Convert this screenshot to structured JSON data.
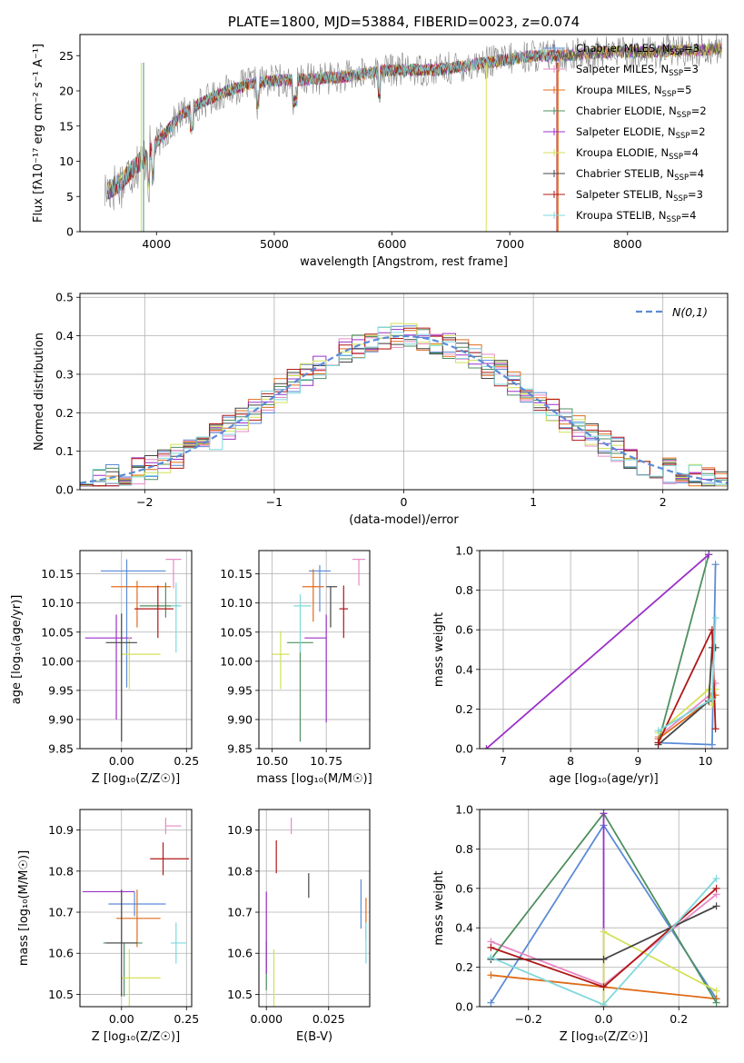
{
  "colors": {
    "Chabrier MILES": "#5b8bd6",
    "Salpeter MILES": "#e78ac3",
    "Kroupa MILES": "#e06c1a",
    "Chabrier ELODIE": "#4f8f5f",
    "Salpeter ELODIE": "#9b30c8",
    "Kroupa ELODIE": "#d4e157",
    "Chabrier STELIB": "#444444",
    "Salpeter STELIB": "#b01818",
    "Kroupa STELIB": "#7fd8dc",
    "normal": "#5b8bd6"
  },
  "chart_data": [
    {
      "id": "spectrum",
      "type": "line",
      "title": "PLATE=1800, MJD=53884, FIBERID=0023, z=0.074",
      "xlabel": "wavelength [Angstrom, rest frame]",
      "ylabel": "Flux [fλ10⁻¹⁷ erg cm⁻² s⁻¹ A⁻¹]",
      "xlim": [
        3350,
        8850
      ],
      "ylim": [
        0,
        28
      ],
      "xticks": [
        "4000",
        "5000",
        "6000",
        "7000",
        "8000"
      ],
      "yticks": [
        "0",
        "5",
        "10",
        "15",
        "20",
        "25"
      ],
      "legend_position": "top-right",
      "legend": [
        "Chabrier MILES, N_SSP=3",
        "Salpeter MILES, N_SSP=3",
        "Kroupa MILES, N_SSP=5",
        "Chabrier ELODIE, N_SSP=2",
        "Salpeter ELODIE, N_SSP=2",
        "Kroupa ELODIE, N_SSP=4",
        "Chabrier STELIB, N_SSP=4",
        "Salpeter STELIB, N_SSP=3",
        "Kroupa STELIB, N_SSP=4"
      ],
      "continuum": {
        "x": [
          3550,
          3700,
          3800,
          3900,
          4000,
          4100,
          4200,
          4400,
          4600,
          4800,
          5000,
          5200,
          5400,
          5600,
          5800,
          6000,
          6200,
          6400,
          6600,
          6800,
          7000,
          7200,
          7400,
          7600,
          7800,
          8000,
          8200,
          8400,
          8600,
          8800
        ],
        "y": [
          5.5,
          7,
          9,
          10.5,
          12.5,
          14.5,
          16.5,
          18.5,
          20,
          21,
          21.5,
          21.5,
          21.8,
          22,
          22.5,
          23,
          23,
          23,
          23.5,
          24,
          24.5,
          25,
          25,
          25.2,
          25.5,
          25.5,
          25.5,
          25.7,
          25.8,
          26
        ]
      }
    },
    {
      "id": "residuals",
      "type": "bar",
      "xlabel": "(data-model)/error",
      "ylabel": "Normed distribution",
      "xlim": [
        -2.5,
        2.5
      ],
      "ylim": [
        0,
        0.51
      ],
      "xticks": [
        "−2",
        "−1",
        "0",
        "1",
        "2"
      ],
      "yticks": [
        "0.0",
        "0.1",
        "0.2",
        "0.3",
        "0.4",
        "0.5"
      ],
      "bin_width": 0.1,
      "legend": "N(0,1)",
      "legend_position": "top-right"
    },
    {
      "id": "age-vs-Z",
      "type": "scatter",
      "xlabel": "Z [log₁₀(Z/Z☉)]",
      "ylabel": "age  [log₁₀(age/yr)]",
      "xlim": [
        -0.16,
        0.27
      ],
      "ylim": [
        9.85,
        10.19
      ],
      "xticks": [
        "0.00",
        "0.25"
      ],
      "yticks": [
        "9.85",
        "9.90",
        "9.95",
        "10.00",
        "10.05",
        "10.10",
        "10.15"
      ],
      "points": [
        {
          "s": "Chabrier MILES",
          "x": 0.02,
          "y": 10.155,
          "xe": [
            0.1,
            0.15
          ],
          "ye": [
            0.2,
            0.02
          ]
        },
        {
          "s": "Salpeter MILES",
          "x": 0.2,
          "y": 10.175,
          "xe": [
            0.03,
            0.03
          ],
          "ye": [
            0.05,
            0.0
          ]
        },
        {
          "s": "Kroupa MILES",
          "x": 0.06,
          "y": 10.128,
          "xe": [
            0.1,
            0.13
          ],
          "ye": [
            0.07,
            0.01
          ]
        },
        {
          "s": "Chabrier ELODIE",
          "x": 0.17,
          "y": 10.095,
          "xe": [
            0.1,
            0.05
          ],
          "ye": [
            0.02,
            0.04
          ]
        },
        {
          "s": "Salpeter ELODIE",
          "x": -0.02,
          "y": 10.04,
          "xe": [
            0.12,
            0.06
          ],
          "ye": [
            0.14,
            0.04
          ]
        },
        {
          "s": "Kroupa ELODIE",
          "x": 0.03,
          "y": 10.012,
          "xe": [
            0.03,
            0.12
          ],
          "ye": [
            0.06,
            0.03
          ]
        },
        {
          "s": "Chabrier STELIB",
          "x": 0.0,
          "y": 10.032,
          "xe": [
            0.06,
            0.06
          ],
          "ye": [
            0.17,
            0.05
          ]
        },
        {
          "s": "Salpeter STELIB",
          "x": 0.14,
          "y": 10.09,
          "xe": [
            0.09,
            0.06
          ],
          "ye": [
            0.05,
            0.04
          ]
        },
        {
          "s": "Kroupa STELIB",
          "x": 0.21,
          "y": 10.095,
          "xe": [
            0.02,
            0.02
          ],
          "ye": [
            0.08,
            0.04
          ]
        }
      ]
    },
    {
      "id": "age-vs-mass",
      "type": "scatter",
      "xlabel": "mass [log₁₀(M/M☉)]",
      "ylabel": "",
      "xlim": [
        10.44,
        10.95
      ],
      "ylim": [
        9.85,
        10.19
      ],
      "xticks": [
        "10.50",
        "10.75"
      ],
      "yticks": [
        "9.85",
        "9.90",
        "9.95",
        "10.00",
        "10.05",
        "10.10",
        "10.15"
      ],
      "points": [
        {
          "s": "Chabrier MILES",
          "x": 10.72,
          "y": 10.155,
          "xe": [
            0.05,
            0.05
          ],
          "ye": [
            0.07,
            0.01
          ]
        },
        {
          "s": "Salpeter MILES",
          "x": 10.9,
          "y": 10.175,
          "xe": [
            0.03,
            0.03
          ],
          "ye": [
            0.045,
            0.0
          ]
        },
        {
          "s": "Kroupa MILES",
          "x": 10.69,
          "y": 10.128,
          "xe": [
            0.05,
            0.05
          ],
          "ye": [
            0.06,
            0.03
          ]
        },
        {
          "s": "Chabrier ELODIE",
          "x": 10.63,
          "y": 10.032,
          "xe": [
            0.06,
            0.06
          ],
          "ye": [
            0.17,
            0.0
          ]
        },
        {
          "s": "Salpeter ELODIE",
          "x": 10.75,
          "y": 10.04,
          "xe": [
            0.1,
            0.0
          ],
          "ye": [
            0.145,
            0.04
          ]
        },
        {
          "s": "Kroupa ELODIE",
          "x": 10.54,
          "y": 10.012,
          "xe": [
            0.04,
            0.04
          ],
          "ye": [
            0.06,
            0.04
          ]
        },
        {
          "s": "Chabrier STELIB",
          "x": 10.77,
          "y": 10.128,
          "xe": [
            0.02,
            0.03
          ],
          "ye": [
            0.07,
            0.0
          ]
        },
        {
          "s": "Salpeter STELIB",
          "x": 10.83,
          "y": 10.09,
          "xe": [
            0.02,
            0.02
          ],
          "ye": [
            0.05,
            0.04
          ]
        },
        {
          "s": "Kroupa STELIB",
          "x": 10.63,
          "y": 10.095,
          "xe": [
            0.03,
            0.05
          ],
          "ye": [
            0.08,
            0.02
          ]
        }
      ]
    },
    {
      "id": "massweight-vs-age",
      "type": "line",
      "xlabel": "age  [log₁₀(age/yr)]",
      "ylabel": "mass weight",
      "xlim": [
        6.65,
        10.33
      ],
      "ylim": [
        0,
        1
      ],
      "xticks": [
        "7",
        "8",
        "9",
        "10"
      ],
      "yticks": [
        "0.0",
        "0.2",
        "0.4",
        "0.6",
        "0.8",
        "1.0"
      ],
      "series": [
        {
          "s": "Chabrier MILES",
          "x": [
            9.3,
            10.1,
            10.15
          ],
          "y": [
            0.03,
            0.02,
            0.93
          ]
        },
        {
          "s": "Salpeter MILES",
          "x": [
            9.3,
            10.1,
            10.15
          ],
          "y": [
            0.06,
            0.28,
            0.33
          ]
        },
        {
          "s": "Kroupa MILES",
          "x": [
            9.3,
            10.05,
            10.1,
            10.15
          ],
          "y": [
            0.05,
            0.24,
            0.27,
            0.27
          ]
        },
        {
          "s": "Chabrier ELODIE",
          "x": [
            9.3,
            10.05
          ],
          "y": [
            0.03,
            0.98
          ]
        },
        {
          "s": "Salpeter ELODIE",
          "x": [
            6.75,
            10.05
          ],
          "y": [
            0.0,
            0.98
          ]
        },
        {
          "s": "Kroupa ELODIE",
          "x": [
            9.3,
            10.05,
            10.1,
            10.15
          ],
          "y": [
            0.08,
            0.3,
            0.22,
            0.3
          ]
        },
        {
          "s": "Chabrier STELIB",
          "x": [
            9.3,
            10.05,
            10.1,
            10.15
          ],
          "y": [
            0.02,
            0.24,
            0.51,
            0.51
          ]
        },
        {
          "s": "Salpeter STELIB",
          "x": [
            9.3,
            10.1,
            10.15
          ],
          "y": [
            0.03,
            0.6,
            0.1
          ]
        },
        {
          "s": "Kroupa STELIB",
          "x": [
            9.3,
            10.1,
            10.15
          ],
          "y": [
            0.09,
            0.25,
            0.66
          ]
        }
      ]
    },
    {
      "id": "mass-vs-Z",
      "type": "scatter",
      "xlabel": "Z [log₁₀(Z/Z☉)]",
      "ylabel": "mass [log₁₀(M/M☉)]",
      "xlim": [
        -0.16,
        0.27
      ],
      "ylim": [
        10.47,
        10.95
      ],
      "xticks": [
        "0.00",
        "0.25"
      ],
      "yticks": [
        "10.5",
        "10.6",
        "10.7",
        "10.8",
        "10.9"
      ],
      "points": [
        {
          "s": "Chabrier MILES",
          "x": 0.05,
          "y": 10.72,
          "xe": [
            0.1,
            0.12
          ],
          "ye": [
            0.03,
            0.03
          ]
        },
        {
          "s": "Salpeter MILES",
          "x": 0.17,
          "y": 10.91,
          "xe": [
            0.0,
            0.06
          ],
          "ye": [
            0.02,
            0.02
          ]
        },
        {
          "s": "Kroupa MILES",
          "x": 0.06,
          "y": 10.685,
          "xe": [
            0.08,
            0.09
          ],
          "ye": [
            0.07,
            0.07
          ]
        },
        {
          "s": "Chabrier ELODIE",
          "x": 0.01,
          "y": 10.625,
          "xe": [
            0.08,
            0.07
          ],
          "ye": [
            0.13,
            0.0
          ]
        },
        {
          "s": "Salpeter ELODIE",
          "x": -0.03,
          "y": 10.75,
          "xe": [
            0.12,
            0.08
          ],
          "ye": [
            0.0,
            0.0
          ]
        },
        {
          "s": "Kroupa ELODIE",
          "x": 0.03,
          "y": 10.54,
          "xe": [
            0.03,
            0.12
          ],
          "ye": [
            0.07,
            0.07
          ]
        },
        {
          "s": "Chabrier STELIB",
          "x": 0.0,
          "y": 10.625,
          "xe": [
            0.06,
            0.06
          ],
          "ye": [
            0.13,
            0.13
          ]
        },
        {
          "s": "Salpeter STELIB",
          "x": 0.16,
          "y": 10.83,
          "xe": [
            0.05,
            0.1
          ],
          "ye": [
            0.04,
            0.04
          ]
        },
        {
          "s": "Kroupa STELIB",
          "x": 0.21,
          "y": 10.625,
          "xe": [
            0.02,
            0.04
          ],
          "ye": [
            0.05,
            0.05
          ]
        }
      ]
    },
    {
      "id": "mass-vs-ebv",
      "type": "scatter",
      "xlabel": "E(B-V)",
      "ylabel": "",
      "xlim": [
        -0.003,
        0.0415
      ],
      "ylim": [
        10.47,
        10.95
      ],
      "xticks": [
        "0.000",
        "0.025"
      ],
      "yticks": [
        "10.5",
        "10.6",
        "10.7",
        "10.8",
        "10.9"
      ],
      "points": [
        {
          "s": "Chabrier MILES",
          "x": 0.038,
          "y": 10.72,
          "xe": [
            0.0,
            0.0
          ],
          "ye": [
            0.06,
            0.06
          ]
        },
        {
          "s": "Salpeter MILES",
          "x": 0.01,
          "y": 10.91,
          "xe": [
            0.0,
            0.0
          ],
          "ye": [
            0.02,
            0.02
          ]
        },
        {
          "s": "Kroupa MILES",
          "x": 0.04,
          "y": 10.685,
          "xe": [
            0.0,
            0.0
          ],
          "ye": [
            0.05,
            0.05
          ]
        },
        {
          "s": "Chabrier ELODIE",
          "x": 0.0,
          "y": 10.63,
          "xe": [
            0.0,
            0.0
          ],
          "ye": [
            0.12,
            0.0
          ]
        },
        {
          "s": "Salpeter ELODIE",
          "x": 0.0,
          "y": 10.65,
          "xe": [
            0.0,
            0.0
          ],
          "ye": [
            0.1,
            0.1
          ]
        },
        {
          "s": "Kroupa ELODIE",
          "x": 0.003,
          "y": 10.54,
          "xe": [
            0.0,
            0.0
          ],
          "ye": [
            0.07,
            0.07
          ]
        },
        {
          "s": "Chabrier STELIB",
          "x": 0.017,
          "y": 10.765,
          "xe": [
            0.0,
            0.0
          ],
          "ye": [
            0.03,
            0.03
          ]
        },
        {
          "s": "Salpeter STELIB",
          "x": 0.004,
          "y": 10.835,
          "xe": [
            0.0,
            0.0
          ],
          "ye": [
            0.04,
            0.04
          ]
        },
        {
          "s": "Kroupa STELIB",
          "x": 0.04,
          "y": 10.625,
          "xe": [
            0.0,
            0.0
          ],
          "ye": [
            0.05,
            0.05
          ]
        }
      ]
    },
    {
      "id": "massweight-vs-Z",
      "type": "line",
      "xlabel": "Z [log₁₀(Z/Z☉)]",
      "ylabel": "mass weight",
      "xlim": [
        -0.33,
        0.33
      ],
      "ylim": [
        0,
        1
      ],
      "xticks": [
        "−0.2",
        "0.0",
        "0.2"
      ],
      "yticks": [
        "0.0",
        "0.2",
        "0.4",
        "0.6",
        "0.8",
        "1.0"
      ],
      "series": [
        {
          "s": "Chabrier MILES",
          "x": [
            -0.3,
            0.0,
            0.3
          ],
          "y": [
            0.02,
            0.92,
            0.04
          ]
        },
        {
          "s": "Salpeter MILES",
          "x": [
            -0.3,
            0.0,
            0.3
          ],
          "y": [
            0.33,
            0.11,
            0.57
          ]
        },
        {
          "s": "Kroupa MILES",
          "x": [
            -0.3,
            0.0,
            0.3
          ],
          "y": [
            0.16,
            0.1,
            0.04
          ]
        },
        {
          "s": "Chabrier ELODIE",
          "x": [
            -0.3,
            0.0,
            0.3
          ],
          "y": [
            0.24,
            0.98,
            0.02
          ]
        },
        {
          "s": "Salpeter ELODIE",
          "x": [
            0.0,
            0.0
          ],
          "y": [
            0.0,
            0.98
          ]
        },
        {
          "s": "Kroupa ELODIE",
          "x": [
            0.0,
            0.0,
            0.3
          ],
          "y": [
            0.0,
            0.38,
            0.08
          ]
        },
        {
          "s": "Chabrier STELIB",
          "x": [
            -0.3,
            0.0,
            0.3
          ],
          "y": [
            0.24,
            0.24,
            0.51
          ]
        },
        {
          "s": "Salpeter STELIB",
          "x": [
            -0.3,
            0.0,
            0.3
          ],
          "y": [
            0.3,
            0.1,
            0.6
          ]
        },
        {
          "s": "Kroupa STELIB",
          "x": [
            -0.3,
            0.0,
            0.3
          ],
          "y": [
            0.25,
            0.01,
            0.65
          ]
        }
      ]
    }
  ]
}
